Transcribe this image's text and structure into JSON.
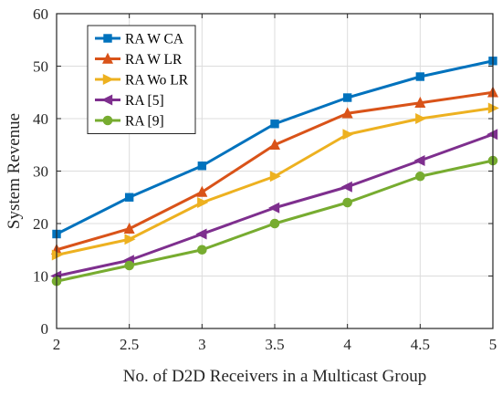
{
  "chart_data": {
    "type": "line",
    "title": "",
    "xlabel": "No. of D2D Receivers in a Multicast Group",
    "ylabel": "System Revenue",
    "x": [
      2,
      2.5,
      3,
      3.5,
      4,
      4.5,
      5
    ],
    "xlim": [
      2,
      5
    ],
    "ylim": [
      0,
      60
    ],
    "xticks": [
      "2",
      "2.5",
      "3",
      "3.5",
      "4",
      "4.5",
      "5"
    ],
    "yticks": [
      "0",
      "10",
      "20",
      "30",
      "40",
      "50",
      "60"
    ],
    "grid": true,
    "legend_position": "top-left",
    "series": [
      {
        "name": "RA W CA",
        "color": "#0072BD",
        "marker": "square",
        "values": [
          18,
          25,
          31,
          39,
          44,
          48,
          51
        ]
      },
      {
        "name": "RA W LR",
        "color": "#D95319",
        "marker": "triangle-up",
        "values": [
          15,
          19,
          26,
          35,
          41,
          43,
          45
        ]
      },
      {
        "name": "RA Wo LR",
        "color": "#EDB120",
        "marker": "triangle-right",
        "values": [
          14,
          17,
          24,
          29,
          37,
          40,
          42
        ]
      },
      {
        "name": "RA [5]",
        "color": "#7E2F8E",
        "marker": "triangle-left",
        "values": [
          10,
          13,
          18,
          23,
          27,
          32,
          37
        ]
      },
      {
        "name": "RA [9]",
        "color": "#77AC30",
        "marker": "circle",
        "values": [
          9,
          12,
          15,
          20,
          24,
          29,
          32
        ]
      }
    ]
  }
}
